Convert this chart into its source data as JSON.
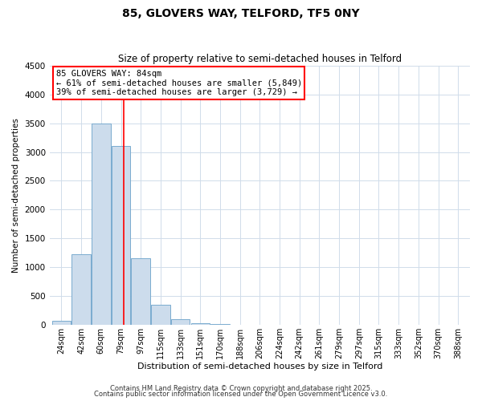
{
  "title": "85, GLOVERS WAY, TELFORD, TF5 0NY",
  "subtitle": "Size of property relative to semi-detached houses in Telford",
  "xlabel": "Distribution of semi-detached houses by size in Telford",
  "ylabel": "Number of semi-detached properties",
  "bar_labels": [
    "24sqm",
    "42sqm",
    "60sqm",
    "79sqm",
    "97sqm",
    "115sqm",
    "133sqm",
    "151sqm",
    "170sqm",
    "188sqm",
    "206sqm",
    "224sqm",
    "242sqm",
    "261sqm",
    "279sqm",
    "297sqm",
    "315sqm",
    "333sqm",
    "352sqm",
    "370sqm",
    "388sqm"
  ],
  "bar_values": [
    70,
    1220,
    3500,
    3100,
    1150,
    340,
    100,
    30,
    5,
    0,
    0,
    0,
    0,
    0,
    0,
    0,
    0,
    0,
    0,
    0,
    0
  ],
  "bar_color": "#ccdcec",
  "bar_edge_color": "#7aabcf",
  "property_line_label": "85 GLOVERS WAY: 84sqm",
  "annotation_line1": "← 61% of semi-detached houses are smaller (5,849)",
  "annotation_line2": "39% of semi-detached houses are larger (3,729) →",
  "ylim": [
    0,
    4500
  ],
  "yticks": [
    0,
    500,
    1000,
    1500,
    2000,
    2500,
    3000,
    3500,
    4000,
    4500
  ],
  "background_color": "#ffffff",
  "grid_color": "#d0dcea",
  "footer_line1": "Contains HM Land Registry data © Crown copyright and database right 2025.",
  "footer_line2": "Contains public sector information licensed under the Open Government Licence v3.0.",
  "title_fontsize": 10,
  "subtitle_fontsize": 8.5,
  "xlabel_fontsize": 8,
  "ylabel_fontsize": 7.5,
  "tick_fontsize": 7,
  "ytick_fontsize": 7.5,
  "footer_fontsize": 6,
  "annot_fontsize": 7.5
}
